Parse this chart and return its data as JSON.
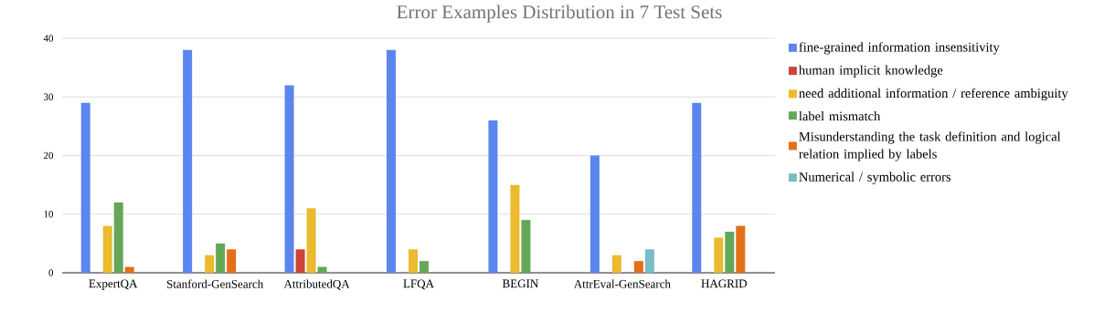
{
  "chart_data": {
    "type": "bar",
    "title": "Error Examples Distribution in 7 Test Sets",
    "categories": [
      "ExpertQA",
      "Stanford-GenSearch",
      "AttributedQA",
      "LFQA",
      "BEGIN",
      "AttrEval-GenSearch",
      "HAGRID"
    ],
    "series": [
      {
        "name": "fine-grained information insensitivity",
        "color": "#5b86ef",
        "values": [
          29,
          38,
          32,
          38,
          26,
          20,
          29
        ]
      },
      {
        "name": "human implicit knowledge",
        "color": "#cc4439",
        "values": [
          0,
          0,
          4,
          0,
          0,
          0,
          0
        ]
      },
      {
        "name": "need additional information / reference ambiguity",
        "color": "#ecba2e",
        "values": [
          8,
          3,
          11,
          4,
          15,
          3,
          6
        ]
      },
      {
        "name": "label mismatch",
        "color": "#64a759",
        "values": [
          12,
          5,
          1,
          2,
          9,
          0,
          7
        ]
      },
      {
        "name": "Misunderstanding the task definition and logical relation implied by labels",
        "color": "#e36f1a",
        "values": [
          1,
          4,
          0,
          0,
          0,
          2,
          8
        ]
      },
      {
        "name": "Numerical / symbolic errors",
        "color": "#77bdc3",
        "values": [
          0,
          0,
          0,
          0,
          0,
          4,
          0
        ]
      }
    ],
    "ylim": [
      0,
      40
    ],
    "yticks": [
      0,
      10,
      20,
      30,
      40
    ],
    "grid": "y",
    "legend": "right"
  }
}
